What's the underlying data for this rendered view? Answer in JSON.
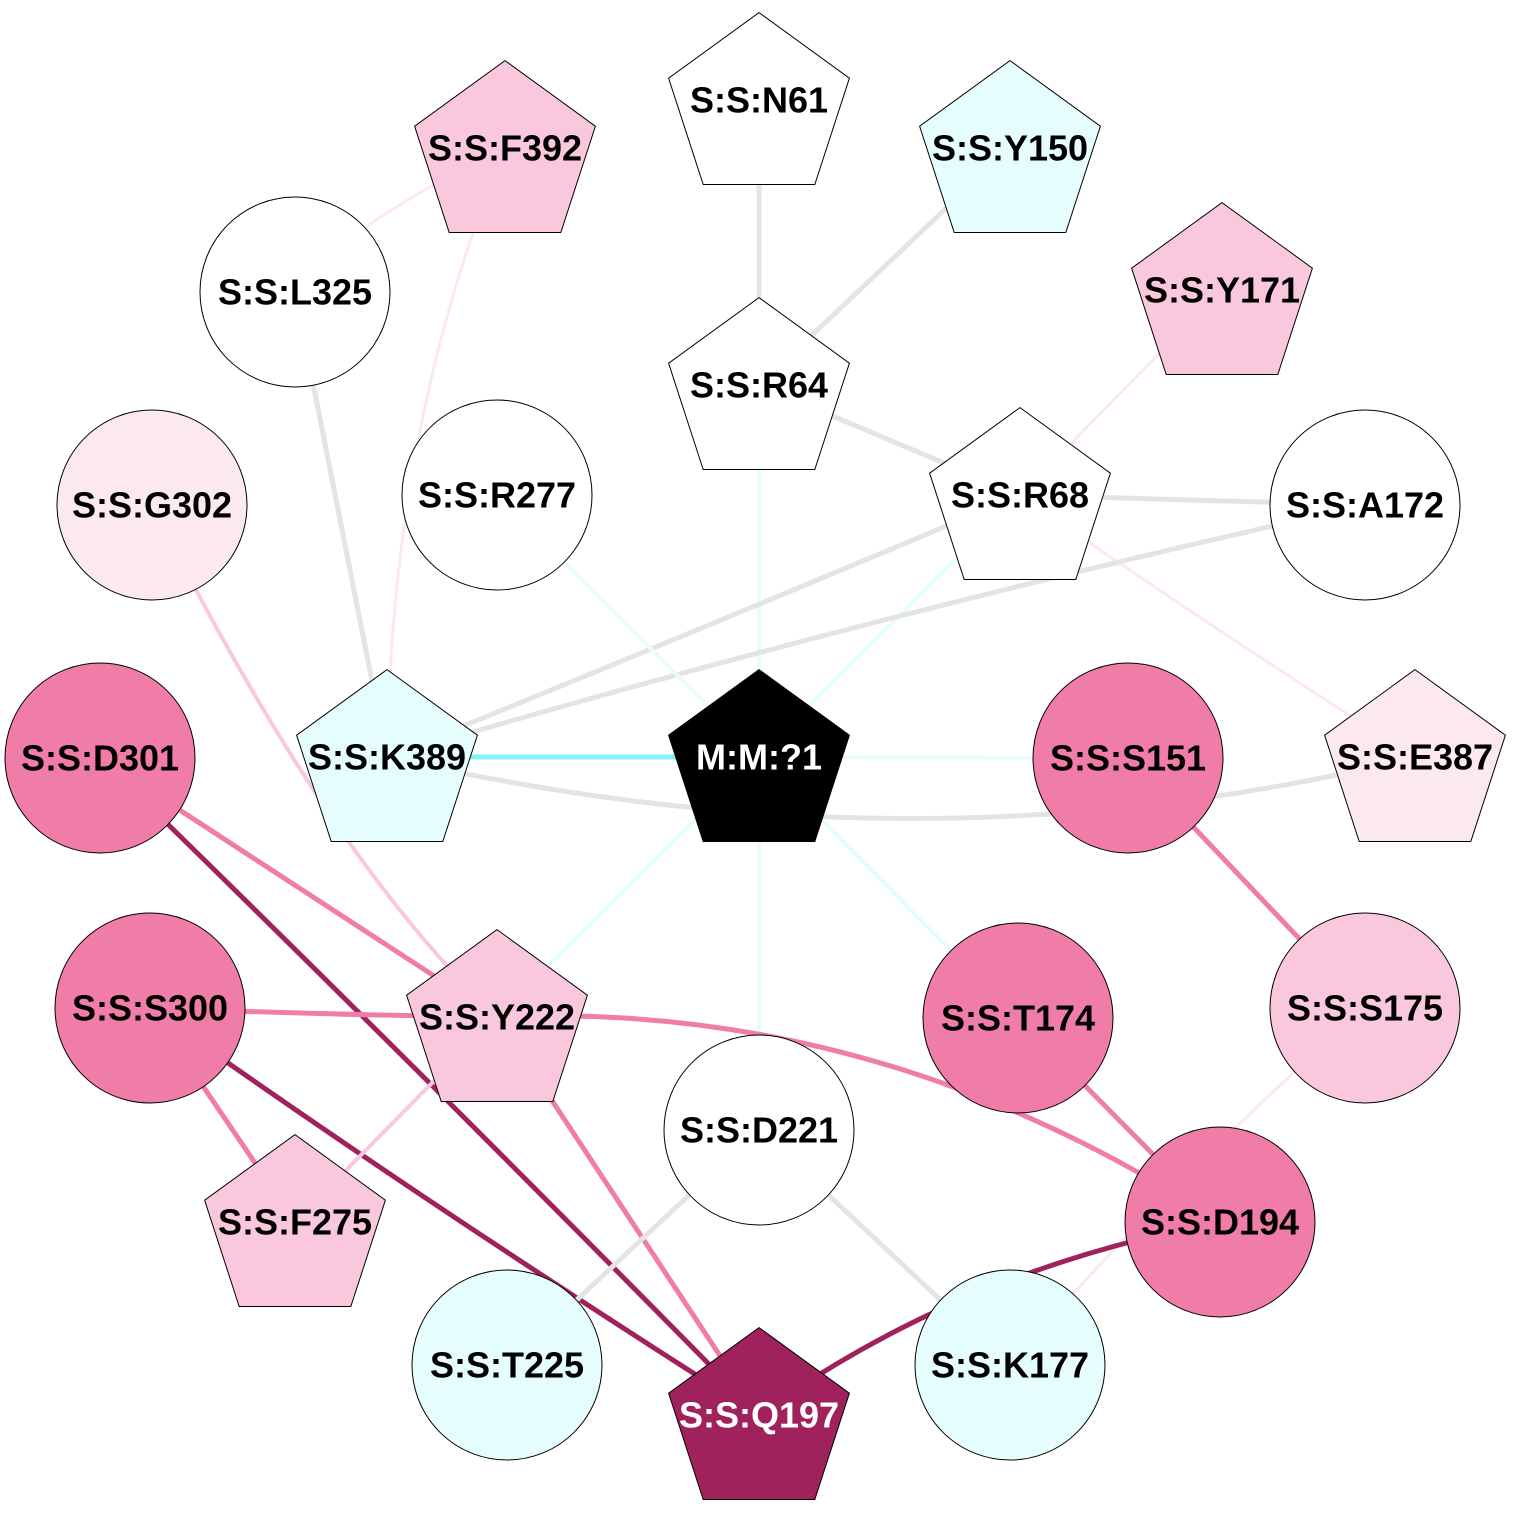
{
  "colors": {
    "white": "#ffffff",
    "cyan_light": "#e6fdfd",
    "cyan_mid": "#80f4f4",
    "pink_pale": "#fbe8f0",
    "pink_light": "#f9c8dd",
    "pink_mid": "#f07ca8",
    "pink_dark": "#a0225c",
    "black": "#000000",
    "grey": "#e4e4e4"
  },
  "nodes": [
    {
      "id": "N61",
      "label": "S:S:N61",
      "shape": "pentagon",
      "fill": "white",
      "text": "black"
    },
    {
      "id": "Y150",
      "label": "S:S:Y150",
      "shape": "pentagon",
      "fill": "cyan_light",
      "text": "black"
    },
    {
      "id": "F392",
      "label": "S:S:F392",
      "shape": "pentagon",
      "fill": "pink_light",
      "text": "black"
    },
    {
      "id": "L325",
      "label": "S:S:L325",
      "shape": "circle",
      "fill": "white",
      "text": "black"
    },
    {
      "id": "R64",
      "label": "S:S:R64",
      "shape": "pentagon",
      "fill": "white",
      "text": "black"
    },
    {
      "id": "Y171",
      "label": "S:S:Y171",
      "shape": "pentagon",
      "fill": "pink_light",
      "text": "black"
    },
    {
      "id": "G302",
      "label": "S:S:G302",
      "shape": "circle",
      "fill": "pink_pale",
      "text": "black"
    },
    {
      "id": "R277",
      "label": "S:S:R277",
      "shape": "circle",
      "fill": "white",
      "text": "black"
    },
    {
      "id": "R68",
      "label": "S:S:R68",
      "shape": "pentagon",
      "fill": "white",
      "text": "black"
    },
    {
      "id": "A172",
      "label": "S:S:A172",
      "shape": "circle",
      "fill": "white",
      "text": "black"
    },
    {
      "id": "D301",
      "label": "S:S:D301",
      "shape": "circle",
      "fill": "pink_mid",
      "text": "black"
    },
    {
      "id": "K389",
      "label": "S:S:K389",
      "shape": "pentagon",
      "fill": "cyan_light",
      "text": "black"
    },
    {
      "id": "M1",
      "label": "M:M:?1",
      "shape": "pentagon",
      "fill": "black",
      "text": "white"
    },
    {
      "id": "S151",
      "label": "S:S:S151",
      "shape": "circle",
      "fill": "pink_mid",
      "text": "black"
    },
    {
      "id": "E387",
      "label": "S:S:E387",
      "shape": "pentagon",
      "fill": "pink_pale",
      "text": "black"
    },
    {
      "id": "S300",
      "label": "S:S:S300",
      "shape": "circle",
      "fill": "pink_mid",
      "text": "black"
    },
    {
      "id": "Y222",
      "label": "S:S:Y222",
      "shape": "pentagon",
      "fill": "pink_light",
      "text": "black"
    },
    {
      "id": "T174",
      "label": "S:S:T174",
      "shape": "circle",
      "fill": "pink_mid",
      "text": "black"
    },
    {
      "id": "S175",
      "label": "S:S:S175",
      "shape": "circle",
      "fill": "pink_light",
      "text": "black"
    },
    {
      "id": "D221",
      "label": "S:S:D221",
      "shape": "circle",
      "fill": "white",
      "text": "black"
    },
    {
      "id": "F275",
      "label": "S:S:F275",
      "shape": "pentagon",
      "fill": "pink_light",
      "text": "black"
    },
    {
      "id": "D194",
      "label": "S:S:D194",
      "shape": "circle",
      "fill": "pink_mid",
      "text": "black"
    },
    {
      "id": "T225",
      "label": "S:S:T225",
      "shape": "circle",
      "fill": "cyan_light",
      "text": "black"
    },
    {
      "id": "K177",
      "label": "S:S:K177",
      "shape": "circle",
      "fill": "cyan_light",
      "text": "black"
    },
    {
      "id": "Q197",
      "label": "S:S:Q197",
      "shape": "pentagon",
      "fill": "pink_dark",
      "text": "white"
    }
  ],
  "edges": [
    {
      "from": "N61",
      "to": "R64",
      "color": "grey"
    },
    {
      "from": "Y150",
      "to": "R64",
      "color": "grey"
    },
    {
      "from": "R64",
      "to": "R68",
      "color": "grey"
    },
    {
      "from": "R64",
      "to": "M1",
      "color": "cyan_light"
    },
    {
      "from": "F392",
      "to": "L325",
      "color": "pink_pale"
    },
    {
      "from": "F392",
      "to": "K389",
      "color": "pink_pale"
    },
    {
      "from": "L325",
      "to": "K389",
      "color": "grey"
    },
    {
      "from": "Y171",
      "to": "R68",
      "color": "pink_pale"
    },
    {
      "from": "R68",
      "to": "A172",
      "color": "grey"
    },
    {
      "from": "R68",
      "to": "K389",
      "color": "grey"
    },
    {
      "from": "R68",
      "to": "M1",
      "color": "cyan_light"
    },
    {
      "from": "R68",
      "to": "E387",
      "color": "pink_pale"
    },
    {
      "from": "A172",
      "to": "K389",
      "color": "grey"
    },
    {
      "from": "R277",
      "to": "M1",
      "color": "cyan_light"
    },
    {
      "from": "G302",
      "to": "Y222",
      "color": "pink_light"
    },
    {
      "from": "K389",
      "to": "M1",
      "color": "cyan_mid"
    },
    {
      "from": "K389",
      "to": "E387",
      "color": "grey"
    },
    {
      "from": "M1",
      "to": "S151",
      "color": "cyan_light"
    },
    {
      "from": "M1",
      "to": "Y222",
      "color": "cyan_light"
    },
    {
      "from": "M1",
      "to": "T174",
      "color": "cyan_light"
    },
    {
      "from": "M1",
      "to": "D221",
      "color": "cyan_light"
    },
    {
      "from": "S151",
      "to": "S175",
      "color": "pink_mid"
    },
    {
      "from": "D301",
      "to": "Y222",
      "color": "pink_mid"
    },
    {
      "from": "D301",
      "to": "Q197",
      "color": "pink_dark"
    },
    {
      "from": "S300",
      "to": "Y222",
      "color": "pink_mid"
    },
    {
      "from": "S300",
      "to": "F275",
      "color": "pink_mid"
    },
    {
      "from": "S300",
      "to": "Q197",
      "color": "pink_dark"
    },
    {
      "from": "Y222",
      "to": "F275",
      "color": "pink_light"
    },
    {
      "from": "Y222",
      "to": "Q197",
      "color": "pink_mid"
    },
    {
      "from": "Y222",
      "to": "D194",
      "color": "pink_mid"
    },
    {
      "from": "T174",
      "to": "D194",
      "color": "pink_mid"
    },
    {
      "from": "S175",
      "to": "K177",
      "color": "pink_pale"
    },
    {
      "from": "D221",
      "to": "T225",
      "color": "grey"
    },
    {
      "from": "D221",
      "to": "K177",
      "color": "grey"
    },
    {
      "from": "D194",
      "to": "Q197",
      "color": "pink_dark"
    }
  ]
}
